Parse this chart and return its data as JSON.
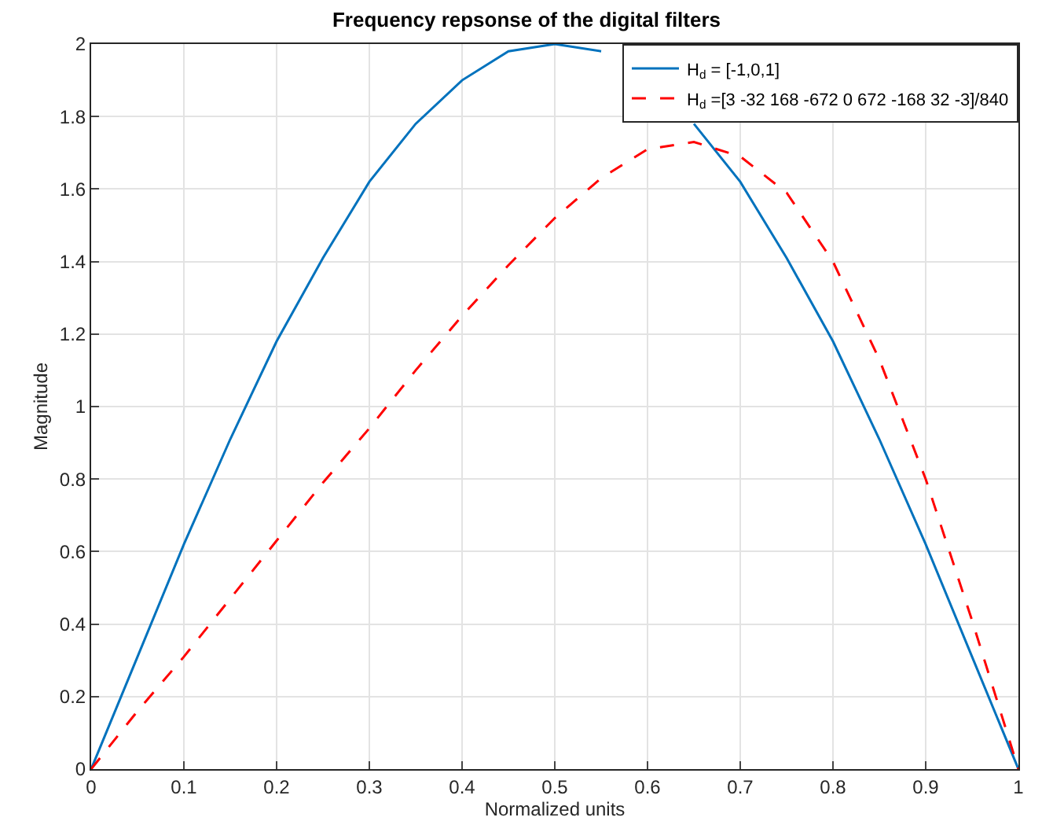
{
  "chart_data": {
    "type": "line",
    "title": "Frequency repsonse of the digital filters",
    "xlabel": "Normalized units",
    "ylabel": "Magnitude",
    "x": [
      0,
      0.05,
      0.1,
      0.15,
      0.2,
      0.25,
      0.3,
      0.35,
      0.4,
      0.45,
      0.5,
      0.55,
      0.6,
      0.65,
      0.7,
      0.75,
      0.8,
      0.85,
      0.9,
      0.95,
      1
    ],
    "series": [
      {
        "name": "H$_{d}$ = [-1,0,1]",
        "color": "#0072bd",
        "line_style": "solid",
        "values": [
          0,
          0.31,
          0.62,
          0.91,
          1.18,
          1.41,
          1.62,
          1.78,
          1.9,
          1.98,
          2,
          1.98,
          null,
          1.78,
          1.62,
          1.41,
          1.18,
          0.91,
          0.62,
          0.31,
          0
        ]
      },
      {
        "name": "H$_{d}$ =[3 -32 168 -672 0 672 -168 32 -3]/840",
        "color": "#ff0000",
        "line_style": "dashed",
        "values": [
          0,
          0.16,
          0.31,
          0.47,
          0.63,
          0.79,
          0.94,
          1.1,
          1.25,
          1.39,
          1.52,
          1.63,
          1.71,
          1.73,
          1.69,
          1.59,
          1.4,
          1.13,
          0.8,
          0.41,
          0
        ]
      }
    ],
    "xlim": [
      0,
      1
    ],
    "xticks": [
      0,
      0.1,
      0.2,
      0.3,
      0.4,
      0.5,
      0.6,
      0.7,
      0.8,
      0.9,
      1
    ],
    "ylim": [
      0,
      2
    ],
    "yticks": [
      0,
      0.2,
      0.4,
      0.6,
      0.8,
      1,
      1.2,
      1.4,
      1.6,
      1.8,
      2
    ],
    "grid": true,
    "legend": "top right",
    "marker": "none"
  }
}
